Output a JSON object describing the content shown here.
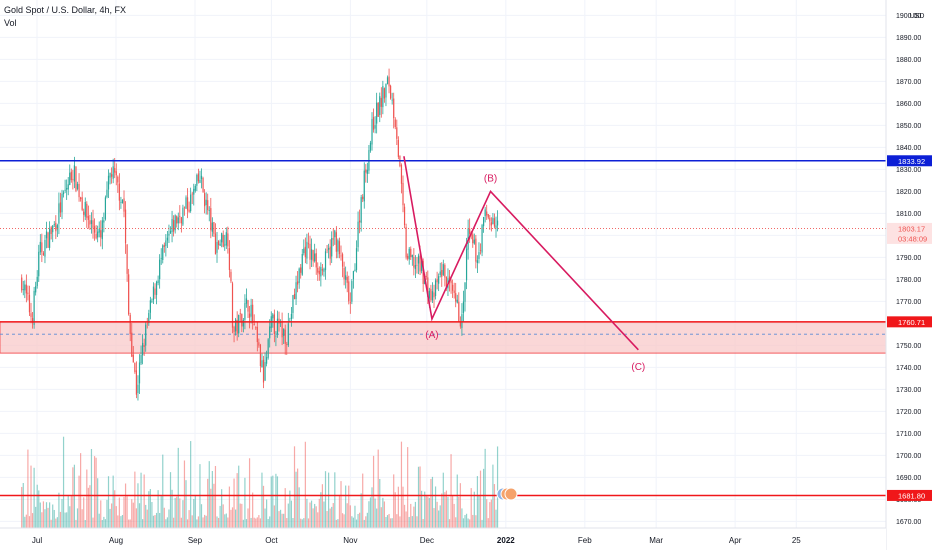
{
  "header": {
    "symbol_line": "Gold Spot / U.S. Dollar, 4h, FX",
    "volume_label": "Vol"
  },
  "price_axis": {
    "currency": "USD",
    "ticks": [
      "1900.00",
      "1890.00",
      "1880.00",
      "1870.00",
      "1860.00",
      "1850.00",
      "1840.00",
      "1830.00",
      "1820.00",
      "1810.00",
      "1800.00",
      "1790.00",
      "1780.00",
      "1770.00",
      "1760.00",
      "1750.00",
      "1740.00",
      "1730.00",
      "1720.00",
      "1710.00",
      "1700.00",
      "1690.00",
      "1680.00",
      "1670.00"
    ]
  },
  "time_axis": {
    "labels": [
      "Jul",
      "Aug",
      "Sep",
      "Oct",
      "Nov",
      "Dec",
      "2022",
      "Feb",
      "Mar",
      "Apr",
      "25"
    ]
  },
  "price_labels": {
    "resistance": "1833.92",
    "current_price": "1803.17",
    "countdown": "03:48:09",
    "support": "1760.71",
    "lower": "1681.80"
  },
  "wave_labels": {
    "a": "(A)",
    "b": "(B)",
    "c": "(C)"
  },
  "colors": {
    "up": "#26a69a",
    "down": "#ef5350",
    "blue_line": "#0c1fd6",
    "red_line": "#f0171a",
    "zone_fill": "#f9c7c7",
    "wave_line": "#d81b60",
    "grid": "#f0f3fa",
    "axis_text": "#131722"
  },
  "chart_data": {
    "type": "candlestick",
    "instrument": "Gold Spot / U.S. Dollar",
    "interval": "4h",
    "ylim": [
      1667,
      1907
    ],
    "horizontal_levels": [
      {
        "value": 1833.92,
        "color": "blue"
      },
      {
        "value": 1760.71,
        "color": "red"
      },
      {
        "value": 1681.8,
        "color": "red"
      }
    ],
    "zone": [
      1746.5,
      1760.71
    ],
    "current_price": 1803.17,
    "wave": [
      {
        "label": "",
        "date": "2021-11-22",
        "price": 1836
      },
      {
        "label": "(A)",
        "date": "2021-12-03",
        "price": 1762
      },
      {
        "label": "(B)",
        "date": "2021-12-26",
        "price": 1820
      },
      {
        "label": "(C)",
        "date": "2022-02-22",
        "price": 1748
      }
    ],
    "price_path": [
      {
        "date": "2021-06-25",
        "price": 1780
      },
      {
        "date": "2021-06-29",
        "price": 1762
      },
      {
        "date": "2021-07-02",
        "price": 1792
      },
      {
        "date": "2021-07-08",
        "price": 1805
      },
      {
        "date": "2021-07-15",
        "price": 1830
      },
      {
        "date": "2021-07-20",
        "price": 1810
      },
      {
        "date": "2021-07-26",
        "price": 1798
      },
      {
        "date": "2021-07-30",
        "price": 1830
      },
      {
        "date": "2021-08-04",
        "price": 1815
      },
      {
        "date": "2021-08-06",
        "price": 1763
      },
      {
        "date": "2021-08-09",
        "price": 1730
      },
      {
        "date": "2021-08-12",
        "price": 1752
      },
      {
        "date": "2021-08-18",
        "price": 1786
      },
      {
        "date": "2021-08-24",
        "price": 1806
      },
      {
        "date": "2021-08-30",
        "price": 1815
      },
      {
        "date": "2021-09-03",
        "price": 1826
      },
      {
        "date": "2021-09-09",
        "price": 1796
      },
      {
        "date": "2021-09-14",
        "price": 1800
      },
      {
        "date": "2021-09-16",
        "price": 1755
      },
      {
        "date": "2021-09-22",
        "price": 1770
      },
      {
        "date": "2021-09-28",
        "price": 1735
      },
      {
        "date": "2021-10-01",
        "price": 1760
      },
      {
        "date": "2021-10-07",
        "price": 1755
      },
      {
        "date": "2021-10-14",
        "price": 1795
      },
      {
        "date": "2021-10-21",
        "price": 1784
      },
      {
        "date": "2021-10-26",
        "price": 1800
      },
      {
        "date": "2021-11-01",
        "price": 1768
      },
      {
        "date": "2021-11-05",
        "price": 1815
      },
      {
        "date": "2021-11-10",
        "price": 1852
      },
      {
        "date": "2021-11-16",
        "price": 1870
      },
      {
        "date": "2021-11-19",
        "price": 1850
      },
      {
        "date": "2021-11-23",
        "price": 1790
      },
      {
        "date": "2021-11-29",
        "price": 1785
      },
      {
        "date": "2021-12-03",
        "price": 1770
      },
      {
        "date": "2021-12-07",
        "price": 1785
      },
      {
        "date": "2021-12-10",
        "price": 1775
      },
      {
        "date": "2021-12-15",
        "price": 1760
      },
      {
        "date": "2021-12-17",
        "price": 1800
      },
      {
        "date": "2021-12-21",
        "price": 1790
      },
      {
        "date": "2021-12-24",
        "price": 1810
      },
      {
        "date": "2021-12-29",
        "price": 1803
      }
    ]
  }
}
